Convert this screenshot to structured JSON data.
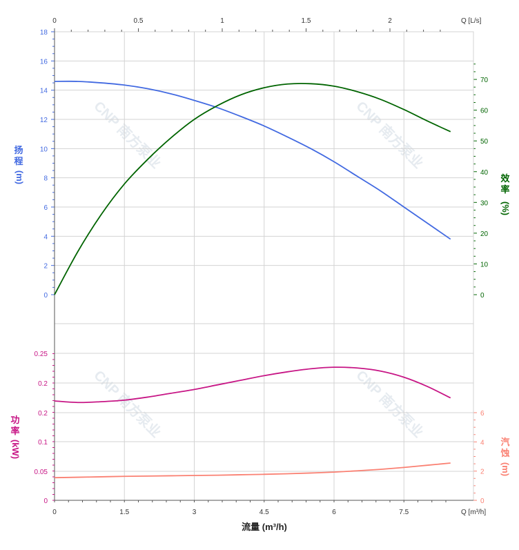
{
  "colors": {
    "head": "#4169e1",
    "efficiency": "#006400",
    "power": "#c71585",
    "npsh": "#fa8072",
    "grid": "#d3d3d3",
    "axis": "#555555",
    "watermark": "#e6ebf0"
  },
  "watermark": {
    "text": "CNP 南方泵业",
    "copies": 4
  },
  "axes": {
    "top_unit": "Q [L/s]",
    "bottom_unit": "Q [m³/h]",
    "xlabel": "流量 (m³/h)",
    "head_label": [
      "扬",
      "程",
      "(m)"
    ],
    "efficiency_label": [
      "效",
      "率",
      "(%)"
    ],
    "power_label": [
      "功",
      "率",
      "(kW)"
    ],
    "npsh_label": [
      "汽",
      "蚀",
      "(m)"
    ]
  },
  "chart_data": [
    {
      "type": "line",
      "panel": "upper",
      "x_unit": "m³/h",
      "xlim": [
        0,
        8.6
      ],
      "x_ticks": [
        "0",
        "1.5",
        "3",
        "4.5",
        "6",
        "7.5"
      ],
      "top_ticks": [
        "0",
        "0.5",
        "1",
        "1.5",
        "2"
      ],
      "top_tick_values_ls": [
        0,
        0.5,
        1,
        1.5,
        2
      ],
      "left_axis": {
        "label": "扬程 (m)",
        "ylim": [
          0,
          18
        ],
        "ticks": [
          "0",
          "2",
          "4",
          "6",
          "8",
          "10",
          "12",
          "14",
          "16",
          "18"
        ]
      },
      "right_axis": {
        "label": "效率 (%)",
        "ylim": [
          0,
          70
        ],
        "ticks": [
          "0",
          "10",
          "20",
          "30",
          "40",
          "50",
          "60",
          "70"
        ]
      },
      "series": [
        {
          "axis": "left",
          "color": "#4169e1",
          "x": [
            0,
            0.5,
            1,
            1.5,
            2,
            2.5,
            3,
            3.5,
            4,
            4.5,
            5,
            5.5,
            6,
            6.5,
            7,
            7.5,
            8,
            8.5
          ],
          "values": [
            14.6,
            14.6,
            14.5,
            14.35,
            14.1,
            13.75,
            13.3,
            12.8,
            12.2,
            11.55,
            10.8,
            10.0,
            9.1,
            8.1,
            7.1,
            6.0,
            4.9,
            3.8
          ]
        },
        {
          "axis": "right",
          "color": "#006400",
          "x": [
            0,
            0.5,
            1,
            1.5,
            2,
            2.5,
            3,
            3.5,
            4,
            4.5,
            5,
            5.5,
            6,
            6.5,
            7,
            7.5,
            8,
            8.5
          ],
          "values": [
            0,
            14,
            26,
            36,
            44,
            51,
            57,
            61.5,
            65,
            67.3,
            68.5,
            68.6,
            67.8,
            66,
            63.5,
            60.2,
            56.5,
            53
          ]
        }
      ]
    },
    {
      "type": "line",
      "panel": "lower",
      "x_unit": "m³/h",
      "xlim": [
        0,
        8.6
      ],
      "x_ticks": [
        "0",
        "1.5",
        "3",
        "4.5",
        "6",
        "7.5"
      ],
      "left_axis": {
        "label": "功率 (kW)",
        "ylim": [
          0,
          0.25
        ],
        "ticks": [
          "0",
          "0.05",
          "0.1",
          "0.2",
          "0.2",
          "0.2",
          "0.25"
        ]
      },
      "right_axis": {
        "label": "汽蚀 (m)",
        "ylim": [
          0,
          6
        ],
        "ticks": [
          "0",
          "2",
          "4",
          "6"
        ]
      },
      "series": [
        {
          "axis": "left",
          "color": "#c71585",
          "x": [
            0,
            0.5,
            1,
            1.5,
            2,
            2.5,
            3,
            3.5,
            4,
            4.5,
            5,
            5.5,
            6,
            6.5,
            7,
            7.5,
            8,
            8.5
          ],
          "values": [
            0.171,
            0.169,
            0.17,
            0.172,
            0.176,
            0.181,
            0.186,
            0.192,
            0.198,
            0.204,
            0.209,
            0.213,
            0.215,
            0.214,
            0.21,
            0.202,
            0.19,
            0.175
          ]
        },
        {
          "axis": "right",
          "color": "#fa8072",
          "x": [
            0,
            0.5,
            1,
            1.5,
            2,
            2.5,
            3,
            3.5,
            4,
            4.5,
            5,
            5.5,
            6,
            6.5,
            7,
            7.5,
            8,
            8.5
          ],
          "values": [
            1.55,
            1.58,
            1.61,
            1.64,
            1.66,
            1.68,
            1.7,
            1.72,
            1.75,
            1.78,
            1.82,
            1.87,
            1.93,
            2.02,
            2.12,
            2.25,
            2.4,
            2.55
          ]
        }
      ]
    }
  ]
}
